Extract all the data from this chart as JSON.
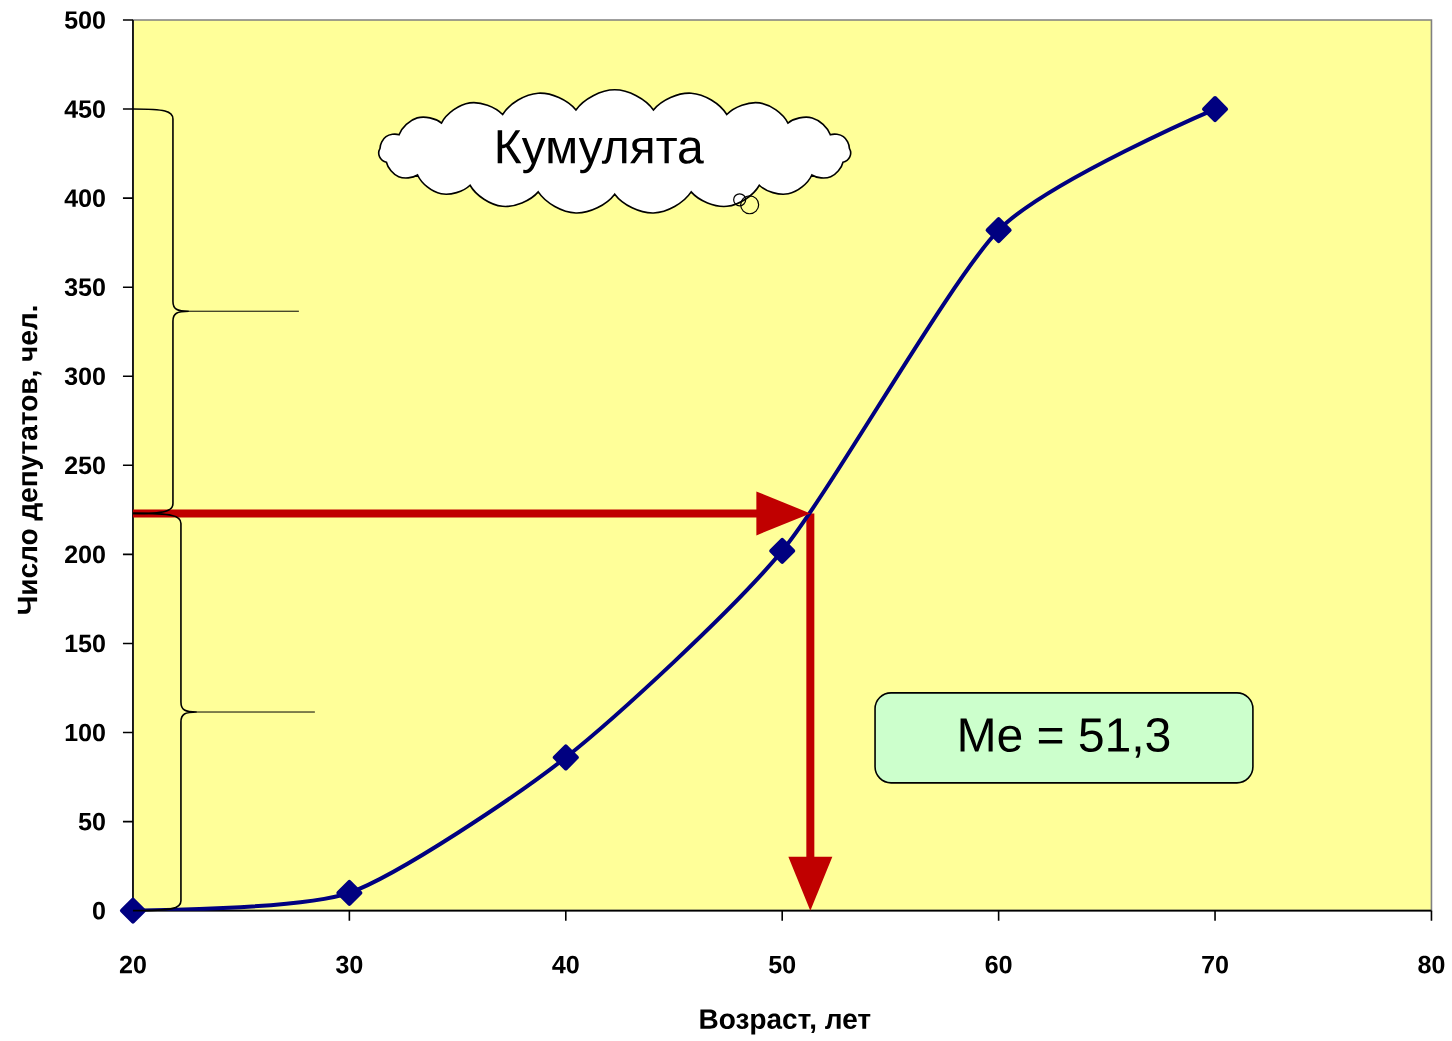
{
  "chart_data": {
    "type": "line",
    "title": "Кумулята",
    "xlabel": "Возраст, лет",
    "ylabel": "Число депутатов, чел.",
    "x": [
      20,
      30,
      40,
      50,
      60,
      70
    ],
    "series": [
      {
        "color": "#000080",
        "values": [
          0,
          10,
          86,
          202,
          382,
          450
        ]
      }
    ],
    "xlim": [
      20,
      80
    ],
    "ylim": [
      0,
      500
    ],
    "xticks": [
      20,
      30,
      40,
      50,
      60,
      70,
      80
    ],
    "yticks": [
      0,
      50,
      100,
      150,
      200,
      250,
      300,
      350,
      400,
      450,
      500
    ],
    "marker": "diamond",
    "ref_lines": [
      {
        "axis": "y",
        "value": 223,
        "color": "#c00000"
      },
      {
        "axis": "x",
        "value": 51.3,
        "color": "#c00000"
      }
    ],
    "annotations": [
      "Me = 51,3"
    ]
  }
}
